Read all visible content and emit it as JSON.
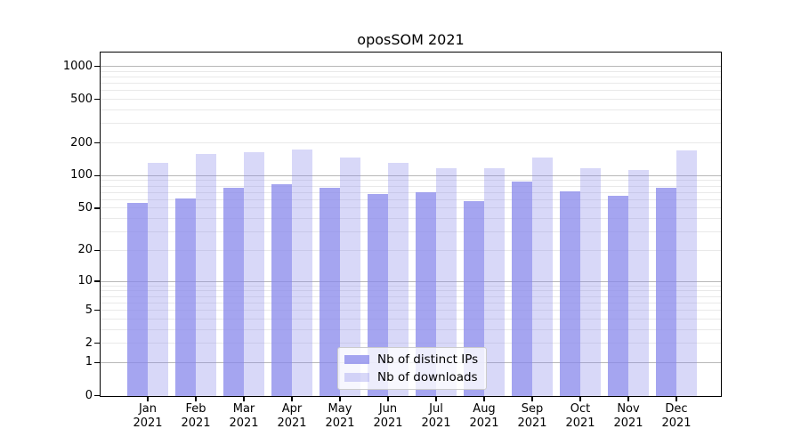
{
  "figure": {
    "title": "oposSOM 2021"
  },
  "legend": {
    "items": [
      {
        "label": "Nb of distinct IPs",
        "swatch": "dark"
      },
      {
        "label": "Nb of downloads",
        "swatch": "light"
      }
    ]
  },
  "colors": {
    "bar_base": "#8787eb",
    "bar_dark_alpha": 0.75,
    "bar_light_alpha": 0.325,
    "grid_minor": "#e9e9e9",
    "grid_major": "#b8b8b8",
    "axis": "#000000",
    "legend_border": "#cccccc"
  },
  "chart_data": {
    "type": "bar",
    "title": "oposSOM 2021",
    "categories": [
      "Jan 2021",
      "Feb 2021",
      "Mar 2021",
      "Apr 2021",
      "May 2021",
      "Jun 2021",
      "Jul 2021",
      "Aug 2021",
      "Sep 2021",
      "Oct 2021",
      "Nov 2021",
      "Dec 2021"
    ],
    "series": [
      {
        "name": "Nb of distinct IPs",
        "values": [
          56,
          62,
          78,
          84,
          77,
          68,
          70,
          58,
          88,
          72,
          65,
          78
        ]
      },
      {
        "name": "Nb of downloads",
        "values": [
          132,
          157,
          164,
          174,
          146,
          132,
          118,
          116,
          146,
          116,
          112,
          169
        ]
      }
    ],
    "xlabel": "",
    "ylabel": "",
    "yscale": "log10(1+y)",
    "yticks": [
      0,
      1,
      2,
      5,
      10,
      20,
      50,
      100,
      200,
      500,
      1000
    ],
    "ylim": [
      0,
      1338
    ],
    "grid": true,
    "gridlines_at": [
      1,
      2,
      3,
      4,
      5,
      6,
      7,
      8,
      9,
      10,
      20,
      30,
      40,
      50,
      60,
      70,
      80,
      90,
      100,
      200,
      300,
      400,
      500,
      600,
      700,
      800,
      900,
      1000
    ],
    "legend_position": "lower center"
  }
}
